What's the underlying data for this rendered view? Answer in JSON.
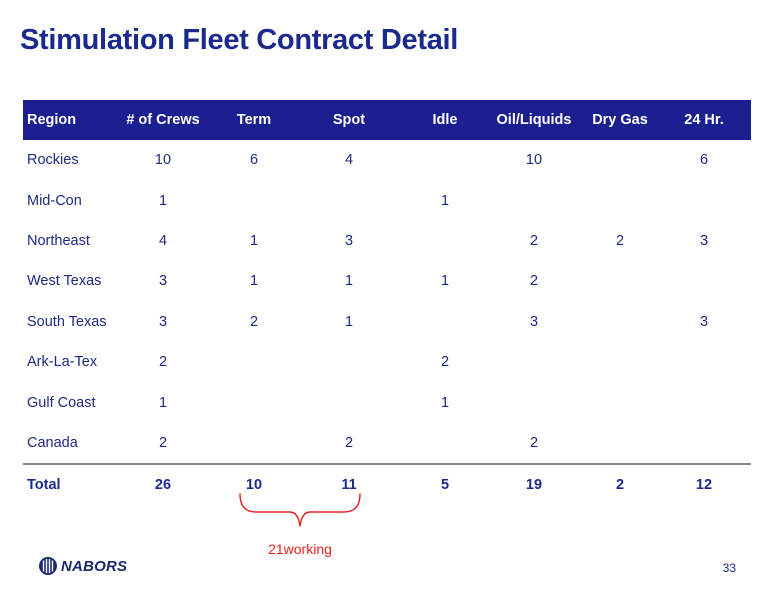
{
  "slide": {
    "title": "Stimulation Fleet Contract Detail",
    "page_number": "33"
  },
  "table": {
    "headers": [
      "Region",
      "# of Crews",
      "Term",
      "Spot",
      "Idle",
      "Oil/Liquids",
      "Dry Gas",
      "24 Hr."
    ],
    "rows": [
      [
        "Rockies",
        "10",
        "6",
        "4",
        "",
        "10",
        "",
        "6"
      ],
      [
        "Mid-Con",
        "1",
        "",
        "",
        "1",
        "",
        "",
        ""
      ],
      [
        "Northeast",
        "4",
        "1",
        "3",
        "",
        "2",
        "2",
        "3"
      ],
      [
        "West Texas",
        "3",
        "1",
        "1",
        "1",
        "2",
        "",
        ""
      ],
      [
        "South Texas",
        "3",
        "2",
        "1",
        "",
        "3",
        "",
        "3"
      ],
      [
        "Ark-La-Tex",
        "2",
        "",
        "",
        "2",
        "",
        "",
        ""
      ],
      [
        "Gulf Coast",
        "1",
        "",
        "",
        "1",
        "",
        "",
        ""
      ],
      [
        "Canada",
        "2",
        "",
        "2",
        "",
        "2",
        "",
        ""
      ]
    ],
    "total": [
      "Total",
      "26",
      "10",
      "11",
      "5",
      "19",
      "2",
      "12"
    ]
  },
  "annotation": {
    "label": "21working",
    "color": "#e8241f"
  },
  "logo": {
    "text": "NABORS",
    "icon": "nabors-logo-icon"
  },
  "colors": {
    "header_bg": "#1b1f8f",
    "title": "#1b2a8c",
    "text": "#1f2a80"
  }
}
